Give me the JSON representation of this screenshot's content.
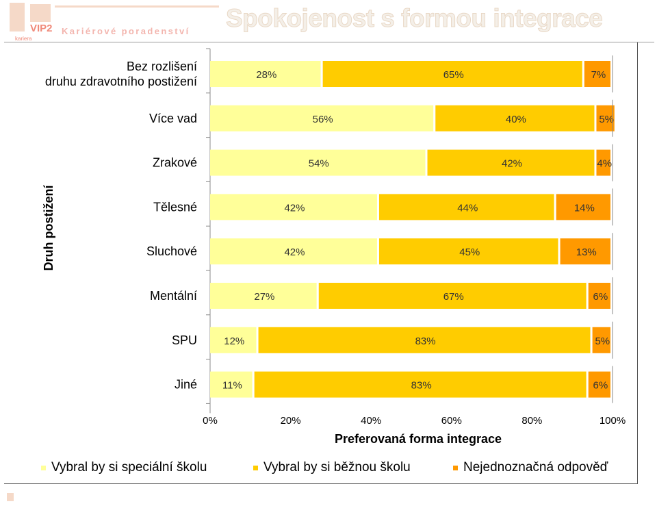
{
  "header": {
    "title": "Spokojenost s formou integrace",
    "logo_tagline": "Kariérové poradenství",
    "logo_brand": "VIP2",
    "logo_sub": "kariera"
  },
  "chart_data": {
    "type": "bar",
    "orientation": "horizontal",
    "stacked": true,
    "title": "",
    "xlabel": "Preferovaná forma integrace",
    "ylabel": "Druh postižení",
    "xlim": [
      0,
      100
    ],
    "x_ticks": [
      "0%",
      "20%",
      "40%",
      "60%",
      "80%",
      "100%"
    ],
    "categories": [
      "Bez rozlišení\ndruhu zdravotního postižení",
      "Více vad",
      "Zrakové",
      "Tělesné",
      "Sluchové",
      "Mentální",
      "SPU",
      "Jiné"
    ],
    "series": [
      {
        "name": "Vybral by si speciální školu",
        "color": "#ffff99",
        "values": [
          28,
          56,
          54,
          42,
          42,
          27,
          12,
          11
        ]
      },
      {
        "name": "Vybral by si běžnou školu",
        "color": "#ffcc00",
        "values": [
          65,
          40,
          42,
          44,
          45,
          67,
          83,
          83
        ]
      },
      {
        "name": "Nejednoznačná odpověď",
        "color": "#ff9900",
        "values": [
          7,
          5,
          4,
          14,
          13,
          6,
          5,
          6
        ]
      }
    ],
    "value_format": "percent",
    "legend_position": "bottom",
    "grid": false
  }
}
